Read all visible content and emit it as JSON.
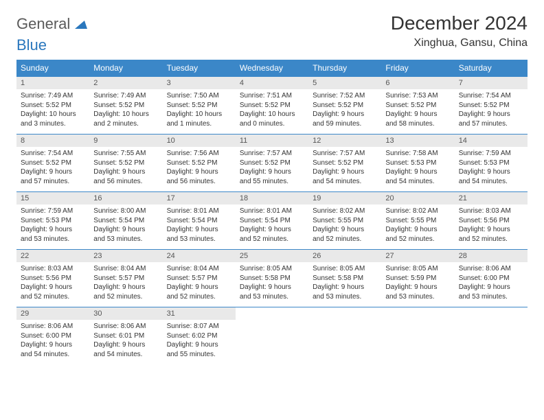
{
  "logo": {
    "word1": "General",
    "word2": "Blue"
  },
  "title": "December 2024",
  "subtitle": "Xinghua, Gansu, China",
  "colors": {
    "header_bg": "#3b87c8",
    "header_fg": "#ffffff",
    "daynum_bg": "#e9e9e9",
    "rule": "#3b87c8",
    "logo_gray": "#5a5a5a",
    "logo_blue": "#2a77bd"
  },
  "weekdays": [
    "Sunday",
    "Monday",
    "Tuesday",
    "Wednesday",
    "Thursday",
    "Friday",
    "Saturday"
  ],
  "weeks": [
    [
      {
        "n": "1",
        "sr": "Sunrise: 7:49 AM",
        "ss": "Sunset: 5:52 PM",
        "d1": "Daylight: 10 hours",
        "d2": "and 3 minutes."
      },
      {
        "n": "2",
        "sr": "Sunrise: 7:49 AM",
        "ss": "Sunset: 5:52 PM",
        "d1": "Daylight: 10 hours",
        "d2": "and 2 minutes."
      },
      {
        "n": "3",
        "sr": "Sunrise: 7:50 AM",
        "ss": "Sunset: 5:52 PM",
        "d1": "Daylight: 10 hours",
        "d2": "and 1 minutes."
      },
      {
        "n": "4",
        "sr": "Sunrise: 7:51 AM",
        "ss": "Sunset: 5:52 PM",
        "d1": "Daylight: 10 hours",
        "d2": "and 0 minutes."
      },
      {
        "n": "5",
        "sr": "Sunrise: 7:52 AM",
        "ss": "Sunset: 5:52 PM",
        "d1": "Daylight: 9 hours",
        "d2": "and 59 minutes."
      },
      {
        "n": "6",
        "sr": "Sunrise: 7:53 AM",
        "ss": "Sunset: 5:52 PM",
        "d1": "Daylight: 9 hours",
        "d2": "and 58 minutes."
      },
      {
        "n": "7",
        "sr": "Sunrise: 7:54 AM",
        "ss": "Sunset: 5:52 PM",
        "d1": "Daylight: 9 hours",
        "d2": "and 57 minutes."
      }
    ],
    [
      {
        "n": "8",
        "sr": "Sunrise: 7:54 AM",
        "ss": "Sunset: 5:52 PM",
        "d1": "Daylight: 9 hours",
        "d2": "and 57 minutes."
      },
      {
        "n": "9",
        "sr": "Sunrise: 7:55 AM",
        "ss": "Sunset: 5:52 PM",
        "d1": "Daylight: 9 hours",
        "d2": "and 56 minutes."
      },
      {
        "n": "10",
        "sr": "Sunrise: 7:56 AM",
        "ss": "Sunset: 5:52 PM",
        "d1": "Daylight: 9 hours",
        "d2": "and 56 minutes."
      },
      {
        "n": "11",
        "sr": "Sunrise: 7:57 AM",
        "ss": "Sunset: 5:52 PM",
        "d1": "Daylight: 9 hours",
        "d2": "and 55 minutes."
      },
      {
        "n": "12",
        "sr": "Sunrise: 7:57 AM",
        "ss": "Sunset: 5:52 PM",
        "d1": "Daylight: 9 hours",
        "d2": "and 54 minutes."
      },
      {
        "n": "13",
        "sr": "Sunrise: 7:58 AM",
        "ss": "Sunset: 5:53 PM",
        "d1": "Daylight: 9 hours",
        "d2": "and 54 minutes."
      },
      {
        "n": "14",
        "sr": "Sunrise: 7:59 AM",
        "ss": "Sunset: 5:53 PM",
        "d1": "Daylight: 9 hours",
        "d2": "and 54 minutes."
      }
    ],
    [
      {
        "n": "15",
        "sr": "Sunrise: 7:59 AM",
        "ss": "Sunset: 5:53 PM",
        "d1": "Daylight: 9 hours",
        "d2": "and 53 minutes."
      },
      {
        "n": "16",
        "sr": "Sunrise: 8:00 AM",
        "ss": "Sunset: 5:54 PM",
        "d1": "Daylight: 9 hours",
        "d2": "and 53 minutes."
      },
      {
        "n": "17",
        "sr": "Sunrise: 8:01 AM",
        "ss": "Sunset: 5:54 PM",
        "d1": "Daylight: 9 hours",
        "d2": "and 53 minutes."
      },
      {
        "n": "18",
        "sr": "Sunrise: 8:01 AM",
        "ss": "Sunset: 5:54 PM",
        "d1": "Daylight: 9 hours",
        "d2": "and 52 minutes."
      },
      {
        "n": "19",
        "sr": "Sunrise: 8:02 AM",
        "ss": "Sunset: 5:55 PM",
        "d1": "Daylight: 9 hours",
        "d2": "and 52 minutes."
      },
      {
        "n": "20",
        "sr": "Sunrise: 8:02 AM",
        "ss": "Sunset: 5:55 PM",
        "d1": "Daylight: 9 hours",
        "d2": "and 52 minutes."
      },
      {
        "n": "21",
        "sr": "Sunrise: 8:03 AM",
        "ss": "Sunset: 5:56 PM",
        "d1": "Daylight: 9 hours",
        "d2": "and 52 minutes."
      }
    ],
    [
      {
        "n": "22",
        "sr": "Sunrise: 8:03 AM",
        "ss": "Sunset: 5:56 PM",
        "d1": "Daylight: 9 hours",
        "d2": "and 52 minutes."
      },
      {
        "n": "23",
        "sr": "Sunrise: 8:04 AM",
        "ss": "Sunset: 5:57 PM",
        "d1": "Daylight: 9 hours",
        "d2": "and 52 minutes."
      },
      {
        "n": "24",
        "sr": "Sunrise: 8:04 AM",
        "ss": "Sunset: 5:57 PM",
        "d1": "Daylight: 9 hours",
        "d2": "and 52 minutes."
      },
      {
        "n": "25",
        "sr": "Sunrise: 8:05 AM",
        "ss": "Sunset: 5:58 PM",
        "d1": "Daylight: 9 hours",
        "d2": "and 53 minutes."
      },
      {
        "n": "26",
        "sr": "Sunrise: 8:05 AM",
        "ss": "Sunset: 5:58 PM",
        "d1": "Daylight: 9 hours",
        "d2": "and 53 minutes."
      },
      {
        "n": "27",
        "sr": "Sunrise: 8:05 AM",
        "ss": "Sunset: 5:59 PM",
        "d1": "Daylight: 9 hours",
        "d2": "and 53 minutes."
      },
      {
        "n": "28",
        "sr": "Sunrise: 8:06 AM",
        "ss": "Sunset: 6:00 PM",
        "d1": "Daylight: 9 hours",
        "d2": "and 53 minutes."
      }
    ],
    [
      {
        "n": "29",
        "sr": "Sunrise: 8:06 AM",
        "ss": "Sunset: 6:00 PM",
        "d1": "Daylight: 9 hours",
        "d2": "and 54 minutes."
      },
      {
        "n": "30",
        "sr": "Sunrise: 8:06 AM",
        "ss": "Sunset: 6:01 PM",
        "d1": "Daylight: 9 hours",
        "d2": "and 54 minutes."
      },
      {
        "n": "31",
        "sr": "Sunrise: 8:07 AM",
        "ss": "Sunset: 6:02 PM",
        "d1": "Daylight: 9 hours",
        "d2": "and 55 minutes."
      },
      {
        "empty": true
      },
      {
        "empty": true
      },
      {
        "empty": true
      },
      {
        "empty": true
      }
    ]
  ]
}
